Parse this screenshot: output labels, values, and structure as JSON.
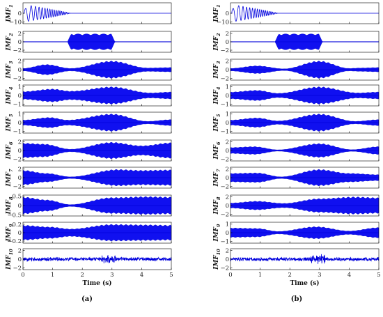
{
  "colors": {
    "signal": "#0000ff",
    "axis": "#000000"
  },
  "chart_data": [
    {
      "id": "a",
      "type": "line",
      "panel_label": "(a)",
      "xlabel": "Time (s)",
      "xlim": [
        0,
        5
      ],
      "xticks": [
        0,
        1,
        2,
        3,
        4,
        5
      ],
      "series": [
        {
          "name": "IMF1",
          "label_main": "IMF",
          "label_sub": "1",
          "ylim": [
            -12,
            12
          ],
          "yticks": [
            0,
            -10
          ],
          "ytick_labels": [
            "0",
            "−10"
          ],
          "kind": "chirp",
          "amp": 10,
          "start": 0.05,
          "end": 1.6
        },
        {
          "name": "IMF2",
          "label_main": "IMF",
          "label_sub": "2",
          "ylim": [
            -2.5,
            2.5
          ],
          "yticks": [
            2,
            0,
            -2
          ],
          "ytick_labels": [
            "2",
            "0",
            "−2"
          ],
          "kind": "burst",
          "amp": 1.9,
          "start": 1.5,
          "end": 3.1
        },
        {
          "name": "IMF3",
          "label_main": "IMF",
          "label_sub": "3",
          "ylim": [
            -2.4,
            2.4
          ],
          "yticks": [
            2,
            0,
            -2
          ],
          "ytick_labels": [
            "2",
            "0",
            "−2"
          ],
          "kind": "envelope",
          "amp": 2.0,
          "env": [
            [
              0,
              0.15
            ],
            [
              0.8,
              0.6
            ],
            [
              1.6,
              0.15
            ],
            [
              3.0,
              1.0
            ],
            [
              4.2,
              0.2
            ],
            [
              5,
              0.25
            ]
          ]
        },
        {
          "name": "IMF4",
          "label_main": "IMF",
          "label_sub": "4",
          "ylim": [
            -1.2,
            1.2
          ],
          "yticks": [
            1,
            0,
            -1
          ],
          "ytick_labels": [
            "1",
            "0",
            "−1"
          ],
          "kind": "envelope",
          "amp": 1.0,
          "env": [
            [
              0,
              0.45
            ],
            [
              1.0,
              0.75
            ],
            [
              1.6,
              0.5
            ],
            [
              3.0,
              1.0
            ],
            [
              4.3,
              0.3
            ],
            [
              5,
              0.4
            ]
          ]
        },
        {
          "name": "IMF5",
          "label_main": "IMF",
          "label_sub": "5",
          "ylim": [
            -1.2,
            1.2
          ],
          "yticks": [
            1,
            0,
            -1
          ],
          "ytick_labels": [
            "1",
            "0",
            "−1"
          ],
          "kind": "envelope",
          "amp": 1.0,
          "env": [
            [
              0,
              0.3
            ],
            [
              0.9,
              0.6
            ],
            [
              1.5,
              0.3
            ],
            [
              3.0,
              1.0
            ],
            [
              4.2,
              0.15
            ],
            [
              5,
              0.35
            ]
          ]
        },
        {
          "name": "IMF6",
          "label_main": "IMF",
          "label_sub": "6",
          "ylim": [
            -2.4,
            2.4
          ],
          "yticks": [
            2,
            0,
            -2
          ],
          "ytick_labels": [
            "2",
            "0",
            "−2"
          ],
          "kind": "envelope",
          "amp": 2.0,
          "env": [
            [
              0,
              0.85
            ],
            [
              0.7,
              0.75
            ],
            [
              1.6,
              0.15
            ],
            [
              3.0,
              0.95
            ],
            [
              4.0,
              0.55
            ],
            [
              5,
              0.9
            ]
          ]
        },
        {
          "name": "IMF7",
          "label_main": "IMF",
          "label_sub": "7",
          "ylim": [
            -2.4,
            2.4
          ],
          "yticks": [
            2,
            0,
            -2
          ],
          "ytick_labels": [
            "2",
            "0",
            "−2"
          ],
          "kind": "envelope",
          "amp": 2.0,
          "env": [
            [
              0,
              0.85
            ],
            [
              0.8,
              0.5
            ],
            [
              1.6,
              0.1
            ],
            [
              3.2,
              0.95
            ],
            [
              4.0,
              0.85
            ],
            [
              5,
              0.9
            ]
          ]
        },
        {
          "name": "IMF8",
          "label_main": "IMF",
          "label_sub": "8",
          "ylim": [
            -0.55,
            0.55
          ],
          "yticks": [
            0.5,
            0,
            -0.5
          ],
          "ytick_labels": [
            "0.5",
            "0",
            "−0.5"
          ],
          "kind": "envelope",
          "amp": 0.5,
          "env": [
            [
              0,
              0.9
            ],
            [
              0.8,
              0.6
            ],
            [
              1.6,
              0.1
            ],
            [
              3.0,
              0.85
            ],
            [
              4.2,
              0.95
            ],
            [
              5,
              0.9
            ]
          ]
        },
        {
          "name": "IMF9",
          "label_main": "IMF",
          "label_sub": "9",
          "ylim": [
            -0.25,
            0.25
          ],
          "yticks": [
            0.2,
            0,
            -0.2
          ],
          "ytick_labels": [
            "0.2",
            "0",
            "−0.2"
          ],
          "kind": "envelope",
          "amp": 0.2,
          "env": [
            [
              0,
              0.9
            ],
            [
              0.9,
              0.7
            ],
            [
              1.6,
              0.45
            ],
            [
              3.0,
              1.0
            ],
            [
              4.2,
              0.95
            ],
            [
              5,
              0.9
            ]
          ]
        },
        {
          "name": "IMF10",
          "label_main": "IMF",
          "label_sub": "10",
          "ylim": [
            -2.4,
            2.4
          ],
          "yticks": [
            2,
            0,
            -2
          ],
          "ytick_labels": [
            "2",
            "0",
            "−2"
          ],
          "kind": "noise",
          "amp": 0.5,
          "spike": 2.9
        }
      ]
    },
    {
      "id": "b",
      "type": "line",
      "panel_label": "(b)",
      "xlabel": "Time (s)",
      "xlim": [
        0,
        5
      ],
      "xticks": [
        0,
        1,
        2,
        3,
        4,
        5
      ],
      "series": [
        {
          "name": "IMF1",
          "label_main": "IMF",
          "label_sub": "1",
          "ylim": [
            -12,
            12
          ],
          "yticks": [
            0,
            -10
          ],
          "ytick_labels": [
            "0",
            "−10"
          ],
          "kind": "chirp",
          "amp": 10,
          "start": 0.05,
          "end": 1.6
        },
        {
          "name": "IMF2",
          "label_main": "IMF",
          "label_sub": "2",
          "ylim": [
            -2.5,
            2.5
          ],
          "yticks": [
            2,
            0,
            -2
          ],
          "ytick_labels": [
            "2",
            "0",
            "−2"
          ],
          "kind": "burst",
          "amp": 1.9,
          "start": 1.5,
          "end": 3.1
        },
        {
          "name": "IMF3",
          "label_main": "IMF",
          "label_sub": "3",
          "ylim": [
            -2.4,
            2.4
          ],
          "yticks": [
            2,
            0,
            -2
          ],
          "ytick_labels": [
            "2",
            "0",
            "−2"
          ],
          "kind": "envelope",
          "amp": 2.0,
          "env": [
            [
              0,
              0.15
            ],
            [
              0.9,
              0.45
            ],
            [
              1.8,
              0.1
            ],
            [
              3.0,
              1.0
            ],
            [
              4.0,
              0.15
            ],
            [
              4.4,
              0.2
            ],
            [
              5,
              0.25
            ]
          ]
        },
        {
          "name": "IMF4",
          "label_main": "IMF",
          "label_sub": "4",
          "ylim": [
            -1.2,
            1.2
          ],
          "yticks": [
            1,
            0,
            -1
          ],
          "ytick_labels": [
            "1",
            "0",
            "−1"
          ],
          "kind": "envelope",
          "amp": 1.0,
          "env": [
            [
              0,
              0.4
            ],
            [
              0.9,
              0.6
            ],
            [
              1.6,
              0.25
            ],
            [
              3.0,
              1.0
            ],
            [
              4.3,
              0.3
            ],
            [
              5,
              0.4
            ]
          ]
        },
        {
          "name": "IMF5",
          "label_main": "IMF",
          "label_sub": "5",
          "ylim": [
            -1.2,
            1.2
          ],
          "yticks": [
            1,
            0,
            -1
          ],
          "ytick_labels": [
            "1",
            "0",
            "−1"
          ],
          "kind": "envelope",
          "amp": 1.0,
          "env": [
            [
              0,
              0.3
            ],
            [
              0.9,
              0.55
            ],
            [
              1.6,
              0.2
            ],
            [
              3.0,
              1.0
            ],
            [
              4.2,
              0.15
            ],
            [
              5,
              0.35
            ]
          ]
        },
        {
          "name": "IMF6",
          "label_main": "IMF",
          "label_sub": "6",
          "ylim": [
            -2.4,
            2.4
          ],
          "yticks": [
            2,
            0,
            -2
          ],
          "ytick_labels": [
            "2",
            "0",
            "−2"
          ],
          "kind": "envelope",
          "amp": 2.0,
          "env": [
            [
              0,
              0.35
            ],
            [
              0.8,
              0.45
            ],
            [
              1.6,
              0.08
            ],
            [
              3.0,
              0.8
            ],
            [
              4.1,
              0.1
            ],
            [
              5,
              0.45
            ]
          ]
        },
        {
          "name": "IMF7",
          "label_main": "IMF",
          "label_sub": "7",
          "ylim": [
            -2.4,
            2.4
          ],
          "yticks": [
            2,
            0,
            -2
          ],
          "ytick_labels": [
            "2",
            "0",
            "−2"
          ],
          "kind": "envelope",
          "amp": 2.0,
          "env": [
            [
              0,
              0.5
            ],
            [
              0.9,
              0.55
            ],
            [
              1.7,
              0.1
            ],
            [
              3.0,
              0.95
            ],
            [
              4.0,
              0.5
            ],
            [
              5,
              0.35
            ]
          ]
        },
        {
          "name": "IMF8",
          "label_main": "IMF",
          "label_sub": "8",
          "ylim": [
            -2.4,
            2.4
          ],
          "yticks": [
            2,
            0,
            -2
          ],
          "ytick_labels": [
            "2",
            "0",
            "−2"
          ],
          "kind": "envelope",
          "amp": 2.0,
          "env": [
            [
              0,
              0.3
            ],
            [
              0.9,
              0.5
            ],
            [
              1.8,
              0.25
            ],
            [
              3.0,
              0.8
            ],
            [
              4.2,
              1.0
            ],
            [
              5,
              0.9
            ]
          ]
        },
        {
          "name": "IMF9",
          "label_main": "IMF",
          "label_sub": "9",
          "ylim": [
            -1.2,
            1.2
          ],
          "yticks": [
            1,
            0,
            -1
          ],
          "ytick_labels": [
            "1",
            "0",
            "−1"
          ],
          "kind": "envelope",
          "amp": 1.0,
          "env": [
            [
              0,
              0.55
            ],
            [
              0.9,
              0.5
            ],
            [
              1.6,
              0.15
            ],
            [
              2.9,
              0.7
            ],
            [
              4.0,
              0.2
            ],
            [
              5,
              0.6
            ]
          ]
        },
        {
          "name": "IMF10",
          "label_main": "IMF",
          "label_sub": "10",
          "ylim": [
            -2.4,
            2.4
          ],
          "yticks": [
            2,
            0,
            -2
          ],
          "ytick_labels": [
            "2",
            "0",
            "−2"
          ],
          "kind": "noise",
          "amp": 0.5,
          "spike": 2.95
        }
      ]
    }
  ]
}
